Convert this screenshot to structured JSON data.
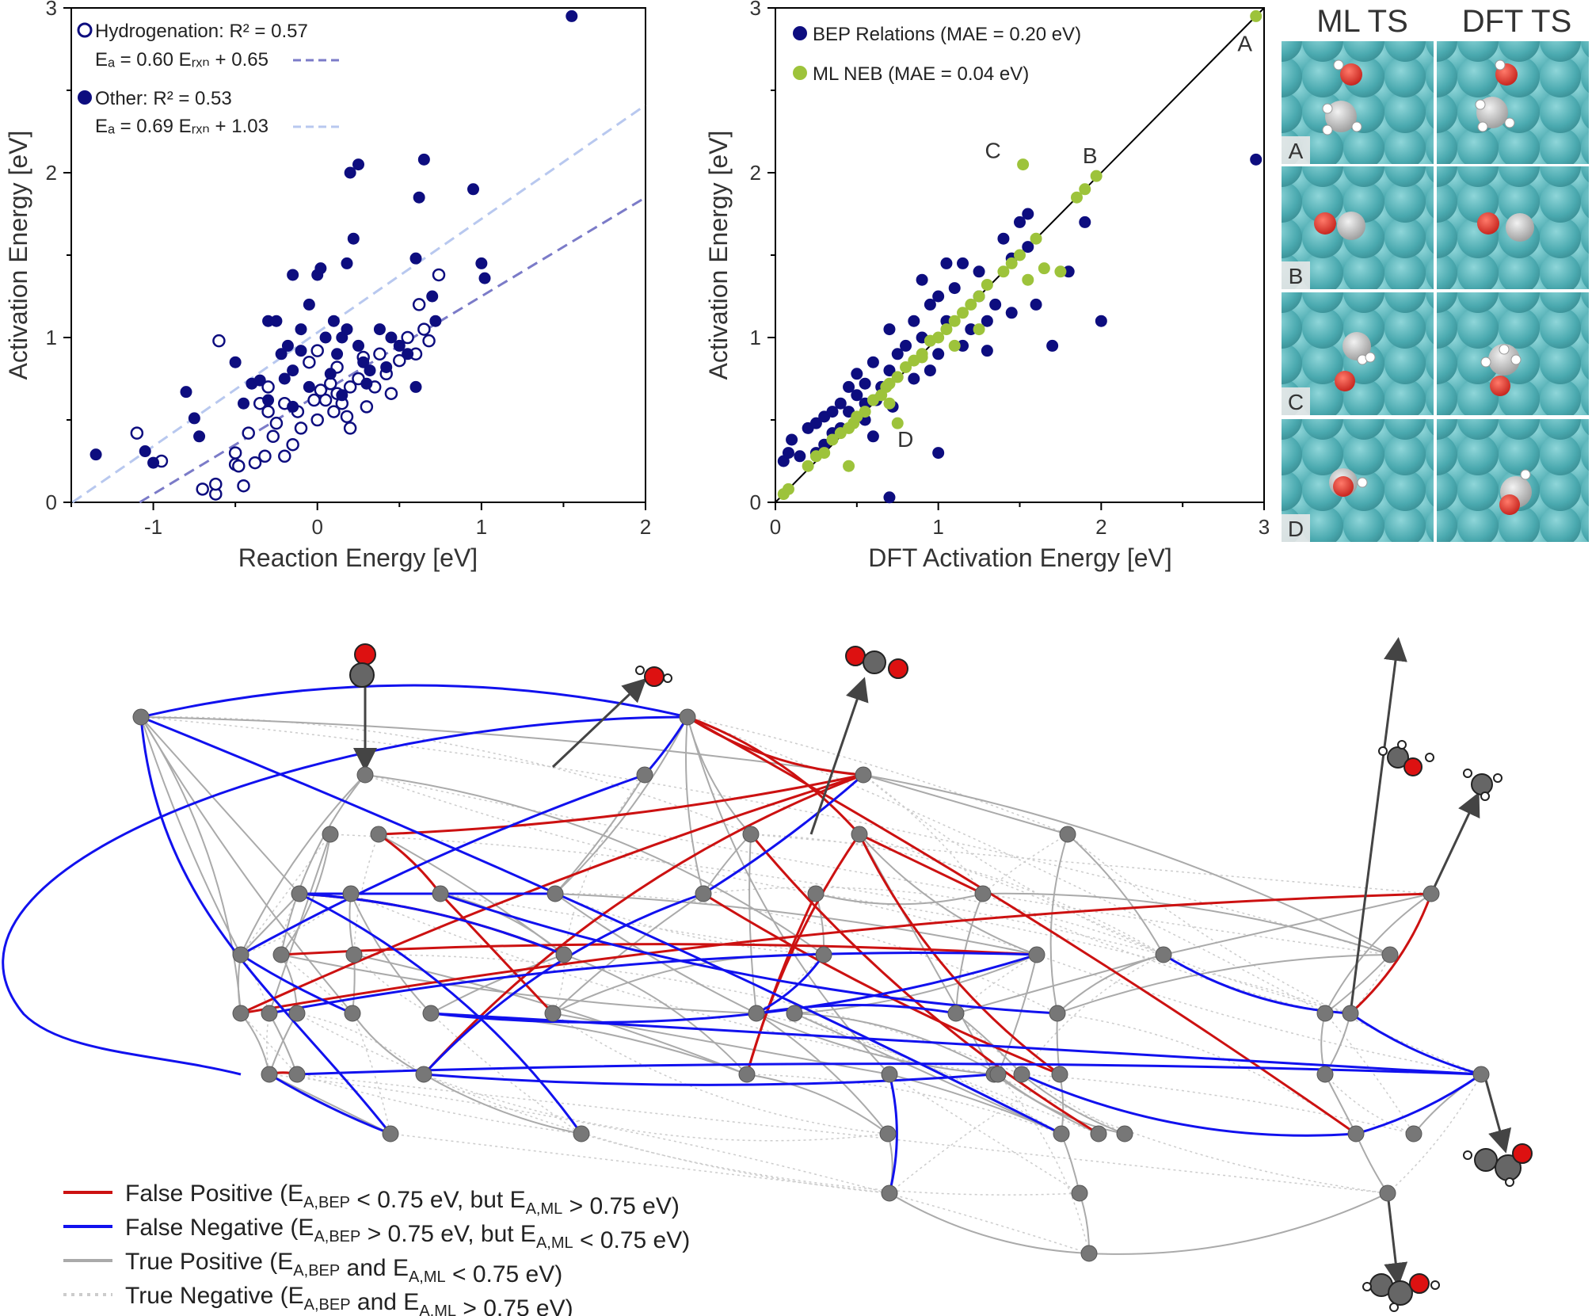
{
  "colors": {
    "navy": "#0d0d7f",
    "green": "#9dc33b",
    "fit_hydrogenation": "#7b7bc8",
    "fit_other": "#b8c8ef",
    "false_positive": "#cc1111",
    "false_negative": "#1111ee",
    "true_positive": "#aaaaaa",
    "true_negative": "#cccccc",
    "surface": "#5bb5bb",
    "node": "#777777"
  },
  "chart_data": [
    {
      "type": "scatter",
      "xlabel": "Reaction Energy [eV]",
      "ylabel": "Activation Energy [eV]",
      "xlim": [
        -1.5,
        2
      ],
      "ylim": [
        0,
        3
      ],
      "xticks": [
        "-1",
        "0",
        "1",
        "2"
      ],
      "yticks": [
        "0",
        "1",
        "2",
        "3"
      ],
      "legend": {
        "hydrogenation": "Hydrogenation: R² = 0.57",
        "hydrogenation_fit": "Eₐ = 0.60 Eᵣₓₙ + 0.65",
        "other": "Other: R² = 0.53",
        "other_fit": "Eₐ = 0.69 Eᵣₓₙ + 1.03"
      },
      "fits": [
        {
          "name": "Hydrogenation fit",
          "slope": 0.6,
          "intercept": 0.65,
          "x": [
            -1.5,
            2
          ]
        },
        {
          "name": "Other fit",
          "slope": 0.69,
          "intercept": 1.03,
          "x": [
            -1.5,
            2
          ]
        }
      ],
      "series": [
        {
          "name": "Hydrogenation",
          "marker": "open",
          "points": [
            [
              -0.6,
              0.98
            ],
            [
              -1.1,
              0.42
            ],
            [
              -0.95,
              0.25
            ],
            [
              -0.7,
              0.08
            ],
            [
              -0.62,
              0.05
            ],
            [
              -0.62,
              0.11
            ],
            [
              -0.5,
              0.3
            ],
            [
              -0.5,
              0.23
            ],
            [
              -0.45,
              0.1
            ],
            [
              -0.38,
              0.24
            ],
            [
              -0.32,
              0.28
            ],
            [
              -0.3,
              0.55
            ],
            [
              -0.2,
              0.28
            ],
            [
              -0.15,
              0.35
            ],
            [
              -0.1,
              0.45
            ],
            [
              0.0,
              0.5
            ],
            [
              0.05,
              0.62
            ],
            [
              0.1,
              0.55
            ],
            [
              0.12,
              0.66
            ],
            [
              0.15,
              0.6
            ],
            [
              0.2,
              0.45
            ],
            [
              0.2,
              0.7
            ],
            [
              0.25,
              0.75
            ],
            [
              0.3,
              0.58
            ],
            [
              0.35,
              0.7
            ],
            [
              0.38,
              0.9
            ],
            [
              0.42,
              0.78
            ],
            [
              0.45,
              0.66
            ],
            [
              0.5,
              0.86
            ],
            [
              0.55,
              1.0
            ],
            [
              0.6,
              0.9
            ],
            [
              0.62,
              1.2
            ],
            [
              0.65,
              1.05
            ],
            [
              0.68,
              0.98
            ],
            [
              -0.3,
              0.7
            ],
            [
              -0.35,
              0.6
            ],
            [
              -0.25,
              0.48
            ],
            [
              -0.05,
              0.85
            ],
            [
              0.02,
              0.68
            ],
            [
              -0.2,
              0.6
            ],
            [
              -0.12,
              0.55
            ],
            [
              0.08,
              0.72
            ],
            [
              -0.42,
              0.42
            ],
            [
              -0.48,
              0.22
            ],
            [
              -0.27,
              0.4
            ],
            [
              0.0,
              0.92
            ],
            [
              -0.02,
              0.62
            ],
            [
              0.12,
              0.82
            ],
            [
              0.18,
              0.52
            ],
            [
              0.28,
              0.88
            ],
            [
              0.74,
              1.38
            ]
          ]
        },
        {
          "name": "Other",
          "marker": "filled",
          "points": [
            [
              -1.35,
              0.29
            ],
            [
              -1.05,
              0.31
            ],
            [
              -1.0,
              0.24
            ],
            [
              -0.8,
              0.67
            ],
            [
              -0.75,
              0.51
            ],
            [
              -0.72,
              0.4
            ],
            [
              -0.5,
              0.85
            ],
            [
              -0.45,
              0.6
            ],
            [
              -0.4,
              0.72
            ],
            [
              -0.35,
              0.74
            ],
            [
              -0.3,
              1.1
            ],
            [
              -0.25,
              1.1
            ],
            [
              -0.22,
              0.9
            ],
            [
              -0.18,
              0.95
            ],
            [
              -0.15,
              1.38
            ],
            [
              -0.15,
              0.8
            ],
            [
              -0.1,
              1.05
            ],
            [
              -0.05,
              1.2
            ],
            [
              0.0,
              1.38
            ],
            [
              0.02,
              1.42
            ],
            [
              0.05,
              1.0
            ],
            [
              0.1,
              1.1
            ],
            [
              0.12,
              0.9
            ],
            [
              0.15,
              1.0
            ],
            [
              0.18,
              1.05
            ],
            [
              0.2,
              2.0
            ],
            [
              0.25,
              2.05
            ],
            [
              0.22,
              1.6
            ],
            [
              0.28,
              0.85
            ],
            [
              0.32,
              0.8
            ],
            [
              0.38,
              1.05
            ],
            [
              0.42,
              0.82
            ],
            [
              0.45,
              1.0
            ],
            [
              0.5,
              0.95
            ],
            [
              0.55,
              0.9
            ],
            [
              0.6,
              1.48
            ],
            [
              0.62,
              1.85
            ],
            [
              0.6,
              0.7
            ],
            [
              0.65,
              2.08
            ],
            [
              0.7,
              1.25
            ],
            [
              0.72,
              1.1
            ],
            [
              0.95,
              1.9
            ],
            [
              1.0,
              1.45
            ],
            [
              1.02,
              1.36
            ],
            [
              1.55,
              2.95
            ],
            [
              -0.2,
              0.75
            ],
            [
              -0.1,
              0.92
            ],
            [
              0.08,
              0.78
            ],
            [
              -0.3,
              0.62
            ],
            [
              0.3,
              0.72
            ],
            [
              -0.05,
              0.7
            ],
            [
              0.15,
              0.65
            ],
            [
              0.25,
              0.95
            ],
            [
              -0.15,
              0.58
            ],
            [
              0.18,
              1.45
            ]
          ]
        }
      ]
    },
    {
      "type": "scatter",
      "xlabel": "DFT Activation Energy [eV]",
      "ylabel": "Activation Energy [eV]",
      "xlim": [
        0,
        3
      ],
      "ylim": [
        0,
        3
      ],
      "xticks": [
        "0",
        "1",
        "2",
        "3"
      ],
      "yticks": [
        "0",
        "1",
        "2",
        "3"
      ],
      "legend": {
        "bep": "BEP Relations (MAE = 0.20 eV)",
        "mlneb": "ML NEB (MAE = 0.04 eV)"
      },
      "annotations": [
        {
          "label": "A",
          "x": 2.95,
          "y": 2.95
        },
        {
          "label": "B",
          "x": 1.97,
          "y": 1.98
        },
        {
          "label": "C",
          "x": 1.52,
          "y": 2.05
        },
        {
          "label": "D",
          "x": 0.75,
          "y": 0.48
        }
      ],
      "series": [
        {
          "name": "BEP Relations",
          "points": [
            [
              0.05,
              0.25
            ],
            [
              0.08,
              0.3
            ],
            [
              0.1,
              0.38
            ],
            [
              0.15,
              0.28
            ],
            [
              0.2,
              0.45
            ],
            [
              0.25,
              0.48
            ],
            [
              0.3,
              0.52
            ],
            [
              0.3,
              0.35
            ],
            [
              0.35,
              0.55
            ],
            [
              0.4,
              0.6
            ],
            [
              0.4,
              0.45
            ],
            [
              0.45,
              0.55
            ],
            [
              0.5,
              0.78
            ],
            [
              0.5,
              0.65
            ],
            [
              0.55,
              0.72
            ],
            [
              0.55,
              0.5
            ],
            [
              0.6,
              0.85
            ],
            [
              0.62,
              0.62
            ],
            [
              0.65,
              0.7
            ],
            [
              0.7,
              1.05
            ],
            [
              0.7,
              0.8
            ],
            [
              0.72,
              0.58
            ],
            [
              0.75,
              0.9
            ],
            [
              0.8,
              0.95
            ],
            [
              0.85,
              1.1
            ],
            [
              0.9,
              1.0
            ],
            [
              0.95,
              1.2
            ],
            [
              1.0,
              1.25
            ],
            [
              1.0,
              0.9
            ],
            [
              1.05,
              1.1
            ],
            [
              1.1,
              1.3
            ],
            [
              1.15,
              0.95
            ],
            [
              1.2,
              1.05
            ],
            [
              1.25,
              1.4
            ],
            [
              1.3,
              1.1
            ],
            [
              1.35,
              1.2
            ],
            [
              1.4,
              1.6
            ],
            [
              1.45,
              1.48
            ],
            [
              1.5,
              1.7
            ],
            [
              1.55,
              1.55
            ],
            [
              1.6,
              1.2
            ],
            [
              1.7,
              0.95
            ],
            [
              1.8,
              1.4
            ],
            [
              1.9,
              1.7
            ],
            [
              2.0,
              1.1
            ],
            [
              2.95,
              2.08
            ],
            [
              0.7,
              0.03
            ],
            [
              1.0,
              0.3
            ],
            [
              0.9,
              1.35
            ],
            [
              1.55,
              1.75
            ],
            [
              1.15,
              1.45
            ],
            [
              0.6,
              0.4
            ],
            [
              0.85,
              0.75
            ],
            [
              0.95,
              0.8
            ],
            [
              1.25,
              1.25
            ],
            [
              0.45,
              0.7
            ],
            [
              1.05,
              1.45
            ],
            [
              1.3,
              0.92
            ],
            [
              0.55,
              0.6
            ],
            [
              0.35,
              0.42
            ],
            [
              1.45,
              1.15
            ],
            [
              0.25,
              0.3
            ]
          ]
        },
        {
          "name": "ML NEB",
          "points": [
            [
              0.05,
              0.05
            ],
            [
              0.08,
              0.08
            ],
            [
              0.2,
              0.22
            ],
            [
              0.25,
              0.28
            ],
            [
              0.3,
              0.3
            ],
            [
              0.35,
              0.38
            ],
            [
              0.4,
              0.42
            ],
            [
              0.45,
              0.45
            ],
            [
              0.48,
              0.48
            ],
            [
              0.5,
              0.52
            ],
            [
              0.55,
              0.55
            ],
            [
              0.6,
              0.62
            ],
            [
              0.65,
              0.65
            ],
            [
              0.68,
              0.7
            ],
            [
              0.7,
              0.72
            ],
            [
              0.75,
              0.76
            ],
            [
              0.8,
              0.82
            ],
            [
              0.85,
              0.86
            ],
            [
              0.9,
              0.9
            ],
            [
              0.95,
              0.98
            ],
            [
              1.0,
              1.0
            ],
            [
              1.05,
              1.05
            ],
            [
              1.1,
              1.1
            ],
            [
              1.15,
              1.15
            ],
            [
              1.2,
              1.2
            ],
            [
              1.25,
              1.25
            ],
            [
              1.3,
              1.32
            ],
            [
              1.4,
              1.4
            ],
            [
              1.45,
              1.45
            ],
            [
              1.5,
              1.5
            ],
            [
              1.55,
              1.35
            ],
            [
              1.6,
              1.6
            ],
            [
              1.65,
              1.42
            ],
            [
              1.75,
              1.4
            ],
            [
              1.85,
              1.85
            ],
            [
              1.9,
              1.9
            ],
            [
              1.97,
              1.98
            ],
            [
              2.95,
              2.95
            ],
            [
              1.52,
              2.05
            ],
            [
              0.45,
              0.22
            ],
            [
              0.7,
              0.6
            ],
            [
              0.75,
              0.48
            ],
            [
              1.25,
              1.05
            ],
            [
              1.1,
              0.95
            ],
            [
              0.9,
              0.88
            ]
          ]
        }
      ]
    }
  ],
  "ts_panel": {
    "col_ml": "ML TS",
    "col_dft": "DFT TS",
    "rows": [
      "A",
      "B",
      "C",
      "D"
    ]
  },
  "network_legend": [
    {
      "label": "False Positive (E",
      "sub1": "A,BEP",
      "mid": " < 0.75 eV, but E",
      "sub2": "A,ML",
      "end": " > 0.75 eV)",
      "style": "false_positive"
    },
    {
      "label": "False Negative (E",
      "sub1": "A,BEP",
      "mid": " > 0.75 eV, but E",
      "sub2": "A,ML",
      "end": " < 0.75 eV)",
      "style": "false_negative"
    },
    {
      "label": "True Positive (E",
      "sub1": "A,BEP",
      "mid": " and E",
      "sub2": "A,ML",
      "end": " < 0.75 eV)",
      "style": "true_positive"
    },
    {
      "label": "True Negative (E",
      "sub1": "A,BEP",
      "mid": " and E",
      "sub2": "A,ML",
      "end": " > 0.75 eV)",
      "style": "true_negative"
    }
  ]
}
